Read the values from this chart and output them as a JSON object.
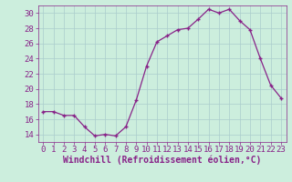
{
  "x": [
    0,
    1,
    2,
    3,
    4,
    5,
    6,
    7,
    8,
    9,
    10,
    11,
    12,
    13,
    14,
    15,
    16,
    17,
    18,
    19,
    20,
    21,
    22,
    23
  ],
  "y": [
    17,
    17,
    16.5,
    16.5,
    15,
    13.8,
    14,
    13.8,
    15,
    18.5,
    23,
    26.2,
    27,
    27.8,
    28,
    29.2,
    30.5,
    30,
    30.5,
    29,
    27.8,
    24,
    20.5,
    18.8
  ],
  "line_color": "#882288",
  "marker": "+",
  "bg_color": "#cceedd",
  "grid_color": "#aacccc",
  "xlabel": "Windchill (Refroidissement éolien,°C)",
  "xlabel_color": "#882288",
  "tick_color": "#882288",
  "ylim": [
    13,
    31
  ],
  "yticks": [
    14,
    16,
    18,
    20,
    22,
    24,
    26,
    28,
    30
  ],
  "xlim": [
    -0.5,
    23.5
  ],
  "font_size": 6.5,
  "xlabel_fontsize": 7
}
